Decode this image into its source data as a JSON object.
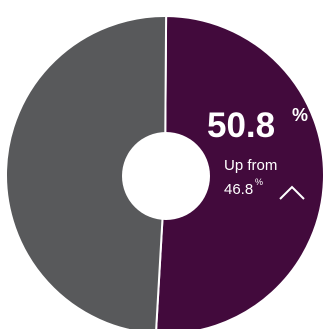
{
  "chart_data": {
    "type": "pie",
    "variant": "donut",
    "values": [
      50.8,
      49.2
    ],
    "colors": [
      "#420a3c",
      "#58595b"
    ],
    "center_background": "#ffffff",
    "highlight": {
      "value": "50.8",
      "unit": "%",
      "change_prefix": "Up from",
      "previous_value": "46.8",
      "previous_unit": "%",
      "trend": "up"
    }
  },
  "icons": {
    "trend": "chevron-up-icon"
  },
  "colors": {
    "text_on_accent": "#ffffff",
    "separator": "#ffffff"
  }
}
